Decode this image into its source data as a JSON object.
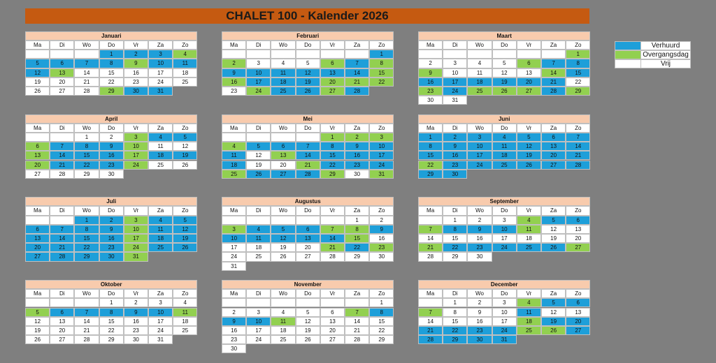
{
  "title": "CHALET 100 - Kalender 2026",
  "legend": [
    {
      "label": "Verhuurd",
      "color": "#1e9fd9"
    },
    {
      "label": "Overgangsdag",
      "color": "#92d050"
    },
    {
      "label": "Vrij",
      "color": "#ffffff"
    }
  ],
  "weekdays": [
    "Ma",
    "Di",
    "Wo",
    "Do",
    "Vr",
    "Za",
    "Zo"
  ],
  "months": [
    {
      "name": "Januari",
      "weeks": [
        [
          null,
          null,
          null,
          1,
          2,
          3,
          4
        ],
        [
          5,
          6,
          7,
          8,
          9,
          10,
          11
        ],
        [
          12,
          13,
          14,
          15,
          16,
          17,
          18
        ],
        [
          19,
          20,
          21,
          22,
          23,
          24,
          25
        ],
        [
          26,
          27,
          28,
          29,
          30,
          31,
          null
        ]
      ],
      "colors": [
        [
          null,
          null,
          null,
          "#1e9fd9",
          "#1e9fd9",
          "#1e9fd9",
          "#92d050"
        ],
        [
          "#1e9fd9",
          "#1e9fd9",
          "#1e9fd9",
          "#1e9fd9",
          "#92d050",
          "#1e9fd9",
          "#1e9fd9"
        ],
        [
          "#1e9fd9",
          "#92d050",
          "#fff",
          "#fff",
          "#fff",
          "#fff",
          "#fff"
        ],
        [
          "#fff",
          "#fff",
          "#fff",
          "#fff",
          "#fff",
          "#fff",
          "#fff"
        ],
        [
          "#fff",
          "#fff",
          "#fff",
          "#92d050",
          "#1e9fd9",
          "#1e9fd9",
          null
        ]
      ]
    },
    {
      "name": "Februari",
      "weeks": [
        [
          null,
          null,
          null,
          null,
          null,
          null,
          1
        ],
        [
          2,
          3,
          4,
          5,
          6,
          7,
          8
        ],
        [
          9,
          10,
          11,
          12,
          13,
          14,
          15
        ],
        [
          16,
          17,
          18,
          19,
          20,
          21,
          22
        ],
        [
          23,
          24,
          25,
          26,
          27,
          28,
          null
        ]
      ],
      "colors": [
        [
          null,
          null,
          null,
          null,
          null,
          null,
          "#1e9fd9"
        ],
        [
          "#92d050",
          "#fff",
          "#fff",
          "#fff",
          "#92d050",
          "#1e9fd9",
          "#92d050"
        ],
        [
          "#1e9fd9",
          "#1e9fd9",
          "#1e9fd9",
          "#1e9fd9",
          "#1e9fd9",
          "#1e9fd9",
          "#92d050"
        ],
        [
          "#92d050",
          "#1e9fd9",
          "#1e9fd9",
          "#1e9fd9",
          "#92d050",
          "#92d050",
          "#92d050"
        ],
        [
          "#fff",
          "#92d050",
          "#1e9fd9",
          "#1e9fd9",
          "#92d050",
          "#1e9fd9",
          null
        ]
      ]
    },
    {
      "name": "Maart",
      "weeks": [
        [
          null,
          null,
          null,
          null,
          null,
          null,
          1
        ],
        [
          2,
          3,
          4,
          5,
          6,
          7,
          8
        ],
        [
          9,
          10,
          11,
          12,
          13,
          14,
          15
        ],
        [
          16,
          17,
          18,
          19,
          20,
          21,
          22
        ],
        [
          23,
          24,
          25,
          26,
          27,
          28,
          29
        ],
        [
          30,
          31,
          null,
          null,
          null,
          null,
          null
        ]
      ],
      "colors": [
        [
          null,
          null,
          null,
          null,
          null,
          null,
          "#92d050"
        ],
        [
          "#fff",
          "#fff",
          "#fff",
          "#fff",
          "#92d050",
          "#1e9fd9",
          "#1e9fd9"
        ],
        [
          "#92d050",
          "#fff",
          "#fff",
          "#fff",
          "#fff",
          "#92d050",
          "#1e9fd9"
        ],
        [
          "#1e9fd9",
          "#1e9fd9",
          "#1e9fd9",
          "#1e9fd9",
          "#1e9fd9",
          "#1e9fd9",
          "#fff"
        ],
        [
          "#92d050",
          "#1e9fd9",
          "#92d050",
          "#92d050",
          "#92d050",
          "#1e9fd9",
          "#92d050"
        ],
        [
          "#fff",
          "#fff",
          null,
          null,
          null,
          null,
          null
        ]
      ]
    },
    {
      "name": "April",
      "weeks": [
        [
          null,
          null,
          1,
          2,
          3,
          4,
          5
        ],
        [
          6,
          7,
          8,
          9,
          10,
          11,
          12
        ],
        [
          13,
          14,
          15,
          16,
          17,
          18,
          19
        ],
        [
          20,
          21,
          22,
          23,
          24,
          25,
          26
        ],
        [
          27,
          28,
          29,
          30,
          null,
          null,
          null
        ]
      ],
      "colors": [
        [
          null,
          null,
          "#fff",
          "#fff",
          "#92d050",
          "#1e9fd9",
          "#1e9fd9"
        ],
        [
          "#92d050",
          "#1e9fd9",
          "#1e9fd9",
          "#1e9fd9",
          "#92d050",
          "#fff",
          "#fff"
        ],
        [
          "#92d050",
          "#1e9fd9",
          "#1e9fd9",
          "#1e9fd9",
          "#92d050",
          "#1e9fd9",
          "#1e9fd9"
        ],
        [
          "#92d050",
          "#1e9fd9",
          "#1e9fd9",
          "#1e9fd9",
          "#92d050",
          "#fff",
          "#fff"
        ],
        [
          "#fff",
          "#fff",
          "#fff",
          "#fff",
          null,
          null,
          null
        ]
      ]
    },
    {
      "name": "Mei",
      "weeks": [
        [
          null,
          null,
          null,
          null,
          1,
          2,
          3
        ],
        [
          4,
          5,
          6,
          7,
          8,
          9,
          10
        ],
        [
          11,
          12,
          13,
          14,
          15,
          16,
          17
        ],
        [
          18,
          19,
          20,
          21,
          22,
          23,
          24
        ],
        [
          25,
          26,
          27,
          28,
          29,
          30,
          31
        ]
      ],
      "colors": [
        [
          null,
          null,
          null,
          null,
          "#92d050",
          "#92d050",
          "#92d050"
        ],
        [
          "#92d050",
          "#1e9fd9",
          "#1e9fd9",
          "#1e9fd9",
          "#1e9fd9",
          "#1e9fd9",
          "#1e9fd9"
        ],
        [
          "#1e9fd9",
          "#fff",
          "#92d050",
          "#1e9fd9",
          "#1e9fd9",
          "#1e9fd9",
          "#1e9fd9"
        ],
        [
          "#1e9fd9",
          "#fff",
          "#fff",
          "#92d050",
          "#1e9fd9",
          "#1e9fd9",
          "#1e9fd9"
        ],
        [
          "#92d050",
          "#1e9fd9",
          "#1e9fd9",
          "#1e9fd9",
          "#92d050",
          "#fff",
          "#92d050"
        ]
      ]
    },
    {
      "name": "Juni",
      "weeks": [
        [
          1,
          2,
          3,
          4,
          5,
          6,
          7
        ],
        [
          8,
          9,
          10,
          11,
          12,
          13,
          14
        ],
        [
          15,
          16,
          17,
          18,
          19,
          20,
          21
        ],
        [
          22,
          23,
          24,
          25,
          26,
          27,
          28
        ],
        [
          29,
          30,
          null,
          null,
          null,
          null,
          null
        ]
      ],
      "colors": [
        [
          "#1e9fd9",
          "#1e9fd9",
          "#1e9fd9",
          "#1e9fd9",
          "#1e9fd9",
          "#1e9fd9",
          "#1e9fd9"
        ],
        [
          "#1e9fd9",
          "#1e9fd9",
          "#1e9fd9",
          "#1e9fd9",
          "#1e9fd9",
          "#1e9fd9",
          "#1e9fd9"
        ],
        [
          "#1e9fd9",
          "#1e9fd9",
          "#1e9fd9",
          "#1e9fd9",
          "#1e9fd9",
          "#1e9fd9",
          "#1e9fd9"
        ],
        [
          "#92d050",
          "#1e9fd9",
          "#1e9fd9",
          "#1e9fd9",
          "#1e9fd9",
          "#1e9fd9",
          "#1e9fd9"
        ],
        [
          "#1e9fd9",
          "#1e9fd9",
          null,
          null,
          null,
          null,
          null
        ]
      ]
    },
    {
      "name": "Juli",
      "weeks": [
        [
          null,
          null,
          1,
          2,
          3,
          4,
          5
        ],
        [
          6,
          7,
          8,
          9,
          10,
          11,
          12
        ],
        [
          13,
          14,
          15,
          16,
          17,
          18,
          19
        ],
        [
          20,
          21,
          22,
          23,
          24,
          25,
          26
        ],
        [
          27,
          28,
          29,
          30,
          31,
          null,
          null
        ]
      ],
      "colors": [
        [
          null,
          null,
          "#1e9fd9",
          "#1e9fd9",
          "#92d050",
          "#1e9fd9",
          "#1e9fd9"
        ],
        [
          "#1e9fd9",
          "#1e9fd9",
          "#1e9fd9",
          "#1e9fd9",
          "#92d050",
          "#1e9fd9",
          "#1e9fd9"
        ],
        [
          "#1e9fd9",
          "#1e9fd9",
          "#1e9fd9",
          "#1e9fd9",
          "#92d050",
          "#1e9fd9",
          "#1e9fd9"
        ],
        [
          "#1e9fd9",
          "#1e9fd9",
          "#1e9fd9",
          "#1e9fd9",
          "#92d050",
          "#1e9fd9",
          "#1e9fd9"
        ],
        [
          "#1e9fd9",
          "#1e9fd9",
          "#1e9fd9",
          "#1e9fd9",
          "#92d050",
          null,
          null
        ]
      ]
    },
    {
      "name": "Augustus",
      "weeks": [
        [
          null,
          null,
          null,
          null,
          null,
          1,
          2
        ],
        [
          3,
          4,
          5,
          6,
          7,
          8,
          9
        ],
        [
          10,
          11,
          12,
          13,
          14,
          15,
          16
        ],
        [
          17,
          18,
          19,
          20,
          21,
          22,
          23
        ],
        [
          24,
          25,
          26,
          27,
          28,
          29,
          30
        ],
        [
          31,
          null,
          null,
          null,
          null,
          null,
          null
        ]
      ],
      "colors": [
        [
          null,
          null,
          null,
          null,
          null,
          "#fff",
          "#fff"
        ],
        [
          "#92d050",
          "#1e9fd9",
          "#1e9fd9",
          "#1e9fd9",
          "#92d050",
          "#92d050",
          "#1e9fd9"
        ],
        [
          "#1e9fd9",
          "#1e9fd9",
          "#1e9fd9",
          "#1e9fd9",
          "#1e9fd9",
          "#92d050",
          "#fff"
        ],
        [
          "#fff",
          "#fff",
          "#fff",
          "#fff",
          "#92d050",
          "#1e9fd9",
          "#92d050"
        ],
        [
          "#fff",
          "#fff",
          "#fff",
          "#fff",
          "#fff",
          "#fff",
          "#fff"
        ],
        [
          "#fff",
          null,
          null,
          null,
          null,
          null,
          null
        ]
      ]
    },
    {
      "name": "September",
      "weeks": [
        [
          null,
          1,
          2,
          3,
          4,
          5,
          6
        ],
        [
          7,
          8,
          9,
          10,
          11,
          12,
          13
        ],
        [
          14,
          15,
          16,
          17,
          18,
          19,
          20
        ],
        [
          21,
          22,
          23,
          24,
          25,
          26,
          27
        ],
        [
          28,
          29,
          30,
          null,
          null,
          null,
          null
        ]
      ],
      "colors": [
        [
          null,
          "#fff",
          "#fff",
          "#fff",
          "#92d050",
          "#1e9fd9",
          "#1e9fd9"
        ],
        [
          "#92d050",
          "#1e9fd9",
          "#1e9fd9",
          "#1e9fd9",
          "#92d050",
          "#fff",
          "#fff"
        ],
        [
          "#fff",
          "#fff",
          "#fff",
          "#fff",
          "#fff",
          "#fff",
          "#fff"
        ],
        [
          "#92d050",
          "#1e9fd9",
          "#1e9fd9",
          "#1e9fd9",
          "#1e9fd9",
          "#1e9fd9",
          "#92d050"
        ],
        [
          "#fff",
          "#fff",
          "#fff",
          null,
          null,
          null,
          null
        ]
      ]
    },
    {
      "name": "Oktober",
      "weeks": [
        [
          null,
          null,
          null,
          1,
          2,
          3,
          4
        ],
        [
          5,
          6,
          7,
          8,
          9,
          10,
          11
        ],
        [
          12,
          13,
          14,
          15,
          16,
          17,
          18
        ],
        [
          19,
          20,
          21,
          22,
          23,
          24,
          25
        ],
        [
          26,
          27,
          28,
          29,
          30,
          31,
          null
        ]
      ],
      "colors": [
        [
          null,
          null,
          null,
          "#fff",
          "#fff",
          "#fff",
          "#fff"
        ],
        [
          "#92d050",
          "#1e9fd9",
          "#1e9fd9",
          "#1e9fd9",
          "#1e9fd9",
          "#1e9fd9",
          "#92d050"
        ],
        [
          "#fff",
          "#fff",
          "#fff",
          "#fff",
          "#fff",
          "#fff",
          "#fff"
        ],
        [
          "#fff",
          "#fff",
          "#fff",
          "#fff",
          "#fff",
          "#fff",
          "#fff"
        ],
        [
          "#fff",
          "#fff",
          "#fff",
          "#fff",
          "#fff",
          "#fff",
          null
        ]
      ]
    },
    {
      "name": "November",
      "weeks": [
        [
          null,
          null,
          null,
          null,
          null,
          null,
          1
        ],
        [
          2,
          3,
          4,
          5,
          6,
          7,
          8
        ],
        [
          9,
          10,
          11,
          12,
          13,
          14,
          15
        ],
        [
          16,
          17,
          18,
          19,
          20,
          21,
          22
        ],
        [
          23,
          24,
          25,
          26,
          27,
          28,
          29
        ],
        [
          30,
          null,
          null,
          null,
          null,
          null,
          null
        ]
      ],
      "colors": [
        [
          null,
          null,
          null,
          null,
          null,
          null,
          "#fff"
        ],
        [
          "#fff",
          "#fff",
          "#fff",
          "#fff",
          "#fff",
          "#92d050",
          "#1e9fd9"
        ],
        [
          "#1e9fd9",
          "#1e9fd9",
          "#92d050",
          "#fff",
          "#fff",
          "#fff",
          "#fff"
        ],
        [
          "#fff",
          "#fff",
          "#fff",
          "#fff",
          "#fff",
          "#fff",
          "#fff"
        ],
        [
          "#fff",
          "#fff",
          "#fff",
          "#fff",
          "#fff",
          "#fff",
          "#fff"
        ],
        [
          "#fff",
          null,
          null,
          null,
          null,
          null,
          null
        ]
      ]
    },
    {
      "name": "December",
      "weeks": [
        [
          null,
          1,
          2,
          3,
          4,
          5,
          6
        ],
        [
          7,
          8,
          9,
          10,
          11,
          12,
          13
        ],
        [
          14,
          15,
          16,
          17,
          18,
          19,
          20
        ],
        [
          21,
          22,
          23,
          24,
          25,
          26,
          27
        ],
        [
          28,
          29,
          30,
          31,
          null,
          null,
          null
        ]
      ],
      "colors": [
        [
          null,
          "#fff",
          "#fff",
          "#fff",
          "#92d050",
          "#1e9fd9",
          "#1e9fd9"
        ],
        [
          "#92d050",
          "#fff",
          "#fff",
          "#fff",
          "#1e9fd9",
          "#fff",
          "#fff"
        ],
        [
          "#fff",
          "#fff",
          "#fff",
          "#fff",
          "#92d050",
          "#1e9fd9",
          "#1e9fd9"
        ],
        [
          "#1e9fd9",
          "#1e9fd9",
          "#1e9fd9",
          "#1e9fd9",
          "#92d050",
          "#92d050",
          "#1e9fd9"
        ],
        [
          "#1e9fd9",
          "#1e9fd9",
          "#1e9fd9",
          "#1e9fd9",
          null,
          null,
          null
        ]
      ]
    }
  ]
}
